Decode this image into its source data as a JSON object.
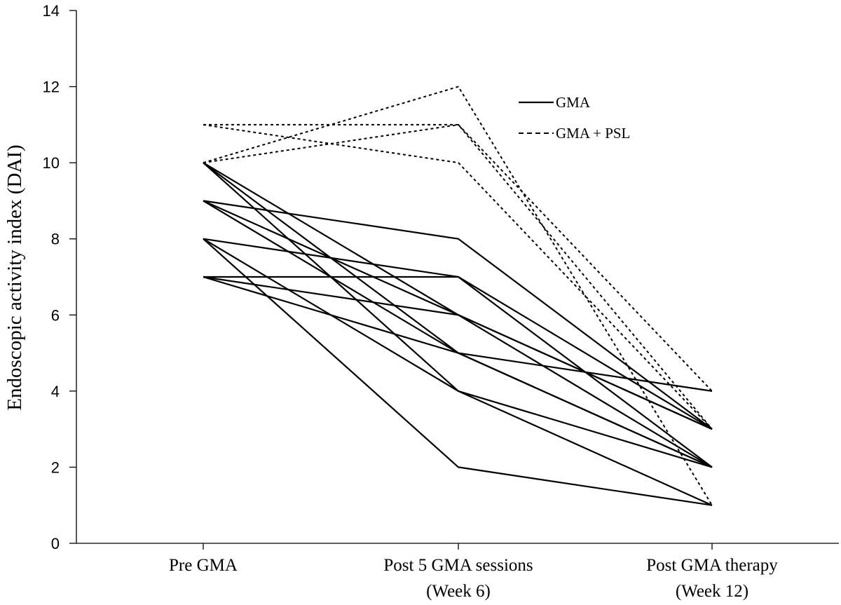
{
  "chart_data": {
    "type": "line",
    "title": "",
    "ylabel": "Endoscopic activity index (DAI)",
    "xlabel": "",
    "ylim": [
      0,
      14
    ],
    "yticks": [
      0,
      2,
      4,
      6,
      8,
      10,
      12,
      14
    ],
    "categories": [
      {
        "line1": "Pre GMA",
        "line2": ""
      },
      {
        "line1": "Post 5 GMA sessions",
        "line2": "(Week 6)"
      },
      {
        "line1": "Post GMA therapy",
        "line2": "(Week 12)"
      }
    ],
    "grid": false,
    "legend": {
      "placement": "top-right",
      "entries": [
        {
          "label": "GMA",
          "style": "solid"
        },
        {
          "label": "GMA + PSL",
          "style": "dashed"
        }
      ]
    },
    "series": [
      {
        "group": "GMA",
        "style": "solid",
        "values": [
          10,
          5,
          2
        ]
      },
      {
        "group": "GMA",
        "style": "solid",
        "values": [
          10,
          4,
          1
        ]
      },
      {
        "group": "GMA",
        "style": "solid",
        "values": [
          10,
          6,
          3
        ]
      },
      {
        "group": "GMA",
        "style": "solid",
        "values": [
          9,
          8,
          3
        ]
      },
      {
        "group": "GMA",
        "style": "solid",
        "values": [
          9,
          6,
          2
        ]
      },
      {
        "group": "GMA",
        "style": "solid",
        "values": [
          9,
          5,
          4
        ]
      },
      {
        "group": "GMA",
        "style": "solid",
        "values": [
          8,
          7,
          2
        ]
      },
      {
        "group": "GMA",
        "style": "solid",
        "values": [
          8,
          4,
          2
        ]
      },
      {
        "group": "GMA",
        "style": "solid",
        "values": [
          8,
          2,
          1
        ]
      },
      {
        "group": "GMA",
        "style": "solid",
        "values": [
          7,
          7,
          3
        ]
      },
      {
        "group": "GMA",
        "style": "solid",
        "values": [
          7,
          6,
          3
        ]
      },
      {
        "group": "GMA",
        "style": "solid",
        "values": [
          7,
          5,
          2
        ]
      },
      {
        "group": "GMA + PSL",
        "style": "dashed",
        "values": [
          10,
          12,
          1
        ]
      },
      {
        "group": "GMA + PSL",
        "style": "dashed",
        "values": [
          11,
          11,
          3
        ]
      },
      {
        "group": "GMA + PSL",
        "style": "dashed",
        "values": [
          10,
          11,
          4
        ]
      },
      {
        "group": "GMA + PSL",
        "style": "dashed",
        "values": [
          11,
          10,
          3
        ]
      }
    ]
  }
}
